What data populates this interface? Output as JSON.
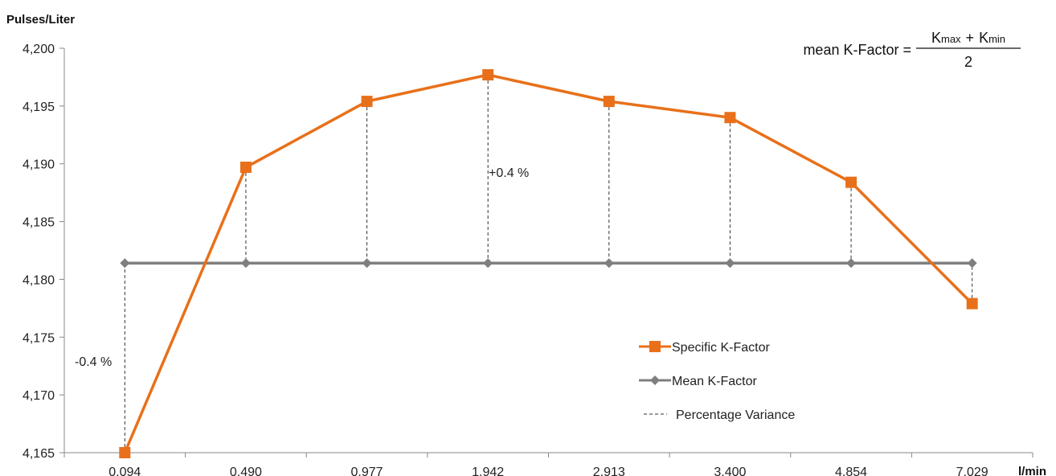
{
  "chart_data": {
    "type": "line",
    "ylabel": "Pulses/Liter",
    "xlabel": "l/min",
    "categories": [
      "0.094",
      "0.490",
      "0.977",
      "1.942",
      "2.913",
      "3.400",
      "4.854",
      "7.029"
    ],
    "ylim": [
      4.165,
      4.2
    ],
    "yticks": [
      4.165,
      4.17,
      4.175,
      4.18,
      4.185,
      4.19,
      4.195,
      4.2
    ],
    "ytick_labels": [
      "4,165",
      "4,170",
      "4,175",
      "4,180",
      "4,185",
      "4,190",
      "4,195",
      "4,200"
    ],
    "grid": false,
    "series": [
      {
        "name": "Specific K-Factor",
        "color": "#E8701A",
        "marker": "square",
        "values": [
          4.165,
          4.1897,
          4.1954,
          4.1977,
          4.1954,
          4.194,
          4.1884,
          4.1779
        ]
      },
      {
        "name": "Mean K-Factor",
        "color": "#7F7F7F",
        "marker": "diamond",
        "values": [
          4.1814,
          4.1814,
          4.1814,
          4.1814,
          4.1814,
          4.1814,
          4.1814,
          4.1814
        ]
      }
    ],
    "variance_legend": "Percentage Variance",
    "annotations": {
      "max": "+0.4 %",
      "min": "-0.4 %"
    },
    "formula": {
      "lhs": "mean K-Factor =",
      "k": "K",
      "sub_max": "max",
      "plus": "+",
      "sub_min": "min",
      "denominator": "2"
    },
    "legend_position": "lower-right"
  }
}
